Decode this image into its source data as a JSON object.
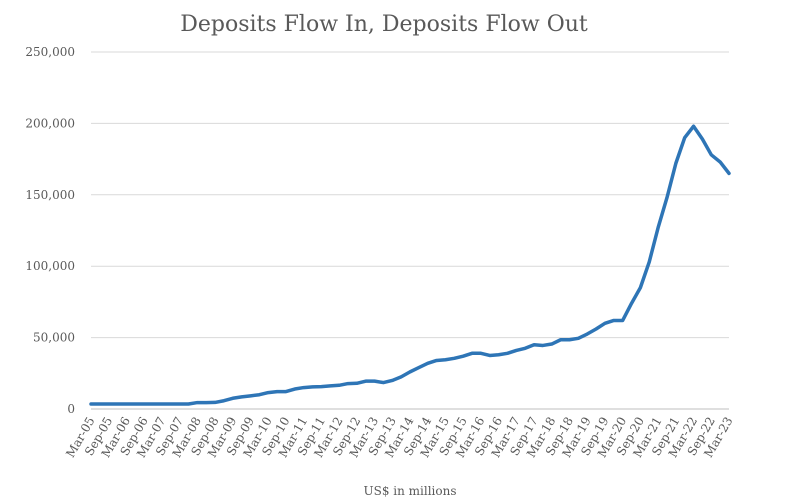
{
  "chart_data": {
    "type": "line",
    "title": "Deposits Flow In, Deposits Flow Out",
    "xlabel": "US$ in millions",
    "ylabel": "",
    "ylim": [
      0,
      250000
    ],
    "y_ticks": [
      "0",
      "50,000",
      "100,000",
      "150,000",
      "200,000",
      "250,000"
    ],
    "y_tick_values": [
      0,
      50000,
      100000,
      150000,
      200000,
      250000
    ],
    "grid": true,
    "legend": "none",
    "line_color": "#2E75B6",
    "categories": [
      "Mar-05",
      "Sep-05",
      "Mar-06",
      "Sep-06",
      "Mar-07",
      "Sep-07",
      "Mar-08",
      "Sep-08",
      "Mar-09",
      "Sep-09",
      "Mar-10",
      "Sep-10",
      "Mar-11",
      "Sep-11",
      "Mar-12",
      "Sep-12",
      "Mar-13",
      "Sep-13",
      "Mar-14",
      "Sep-14",
      "Mar-15",
      "Sep-15",
      "Mar-16",
      "Sep-16",
      "Mar-17",
      "Sep-17",
      "Mar-18",
      "Sep-18",
      "Mar-19",
      "Sep-19",
      "Mar-20",
      "Sep-20",
      "Mar-21",
      "Sep-21",
      "Mar-22",
      "Sep-22",
      "Mar-23"
    ],
    "x": [
      "Mar-05",
      "Jun-05",
      "Sep-05",
      "Dec-05",
      "Mar-06",
      "Jun-06",
      "Sep-06",
      "Dec-06",
      "Mar-07",
      "Jun-07",
      "Sep-07",
      "Dec-07",
      "Mar-08",
      "Jun-08",
      "Sep-08",
      "Dec-08",
      "Mar-09",
      "Jun-09",
      "Sep-09",
      "Dec-09",
      "Mar-10",
      "Jun-10",
      "Sep-10",
      "Dec-10",
      "Mar-11",
      "Jun-11",
      "Sep-11",
      "Dec-11",
      "Mar-12",
      "Jun-12",
      "Sep-12",
      "Dec-12",
      "Mar-13",
      "Jun-13",
      "Sep-13",
      "Dec-13",
      "Mar-14",
      "Jun-14",
      "Sep-14",
      "Dec-14",
      "Mar-15",
      "Jun-15",
      "Sep-15",
      "Dec-15",
      "Mar-16",
      "Jun-16",
      "Sep-16",
      "Dec-16",
      "Mar-17",
      "Jun-17",
      "Sep-17",
      "Dec-17",
      "Mar-18",
      "Jun-18",
      "Sep-18",
      "Dec-18",
      "Mar-19",
      "Jun-19",
      "Sep-19",
      "Dec-19",
      "Mar-20",
      "Jun-20",
      "Sep-20",
      "Dec-20",
      "Mar-21",
      "Jun-21",
      "Sep-21",
      "Dec-21",
      "Mar-22",
      "Jun-22",
      "Sep-22",
      "Dec-22",
      "Mar-23"
    ],
    "values": [
      3500,
      3500,
      3500,
      3500,
      3500,
      3500,
      3500,
      3500,
      3500,
      3500,
      3500,
      3500,
      4500,
      4500,
      4600,
      5800,
      7500,
      8500,
      9200,
      10000,
      11500,
      12200,
      12200,
      14000,
      15000,
      15500,
      15700,
      16200,
      16600,
      17800,
      18000,
      19500,
      19500,
      18500,
      20000,
      22500,
      26000,
      29000,
      32000,
      34000,
      34500,
      35500,
      37000,
      39000,
      39000,
      37500,
      38000,
      39000,
      41000,
      42500,
      45000,
      44500,
      45500,
      48500,
      48500,
      49500,
      52500,
      56000,
      60000,
      62000,
      62000,
      74000,
      85000,
      103000,
      127000,
      148000,
      172000,
      190000,
      198000,
      189000,
      178000,
      173000,
      165000
    ]
  }
}
